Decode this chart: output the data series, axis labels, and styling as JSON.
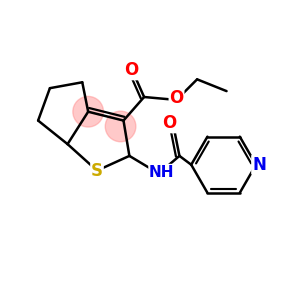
{
  "background": "#ffffff",
  "S_color": "#ccaa00",
  "O_color": "#ff0000",
  "N_color": "#0000ee",
  "C_color": "#000000",
  "bond_lw": 1.8,
  "highlight_color": "#ff8888",
  "highlight_alpha": 0.45,
  "figsize": [
    3.0,
    3.0
  ],
  "dpi": 100,
  "xlim": [
    0,
    10
  ],
  "ylim": [
    0,
    10
  ]
}
